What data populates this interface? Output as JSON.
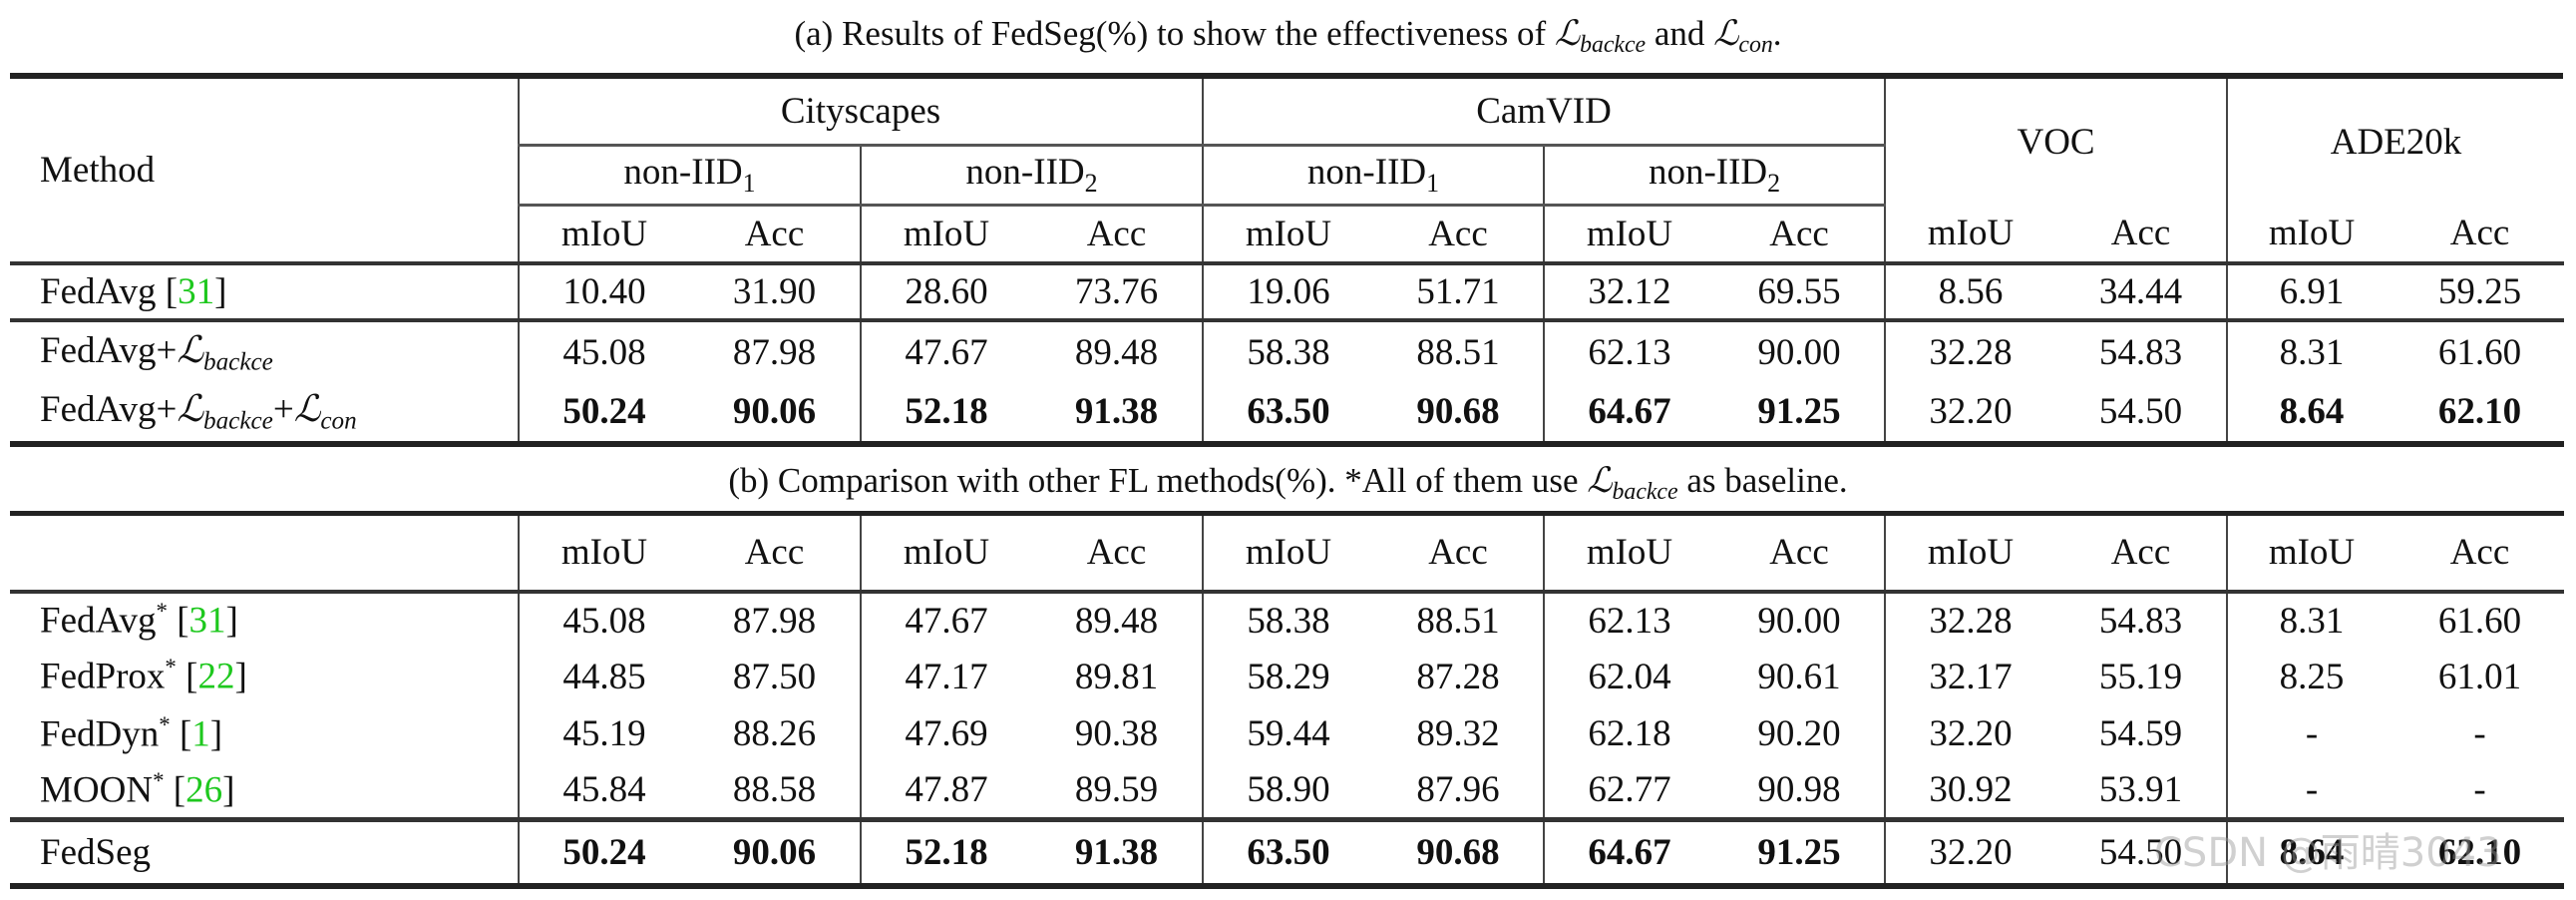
{
  "caption_a": {
    "prefix": "(a) Results of FedSeg(%) to show the effectiveness of ",
    "l1": "backce",
    "mid": " and ",
    "l2": "con",
    "suffix": "."
  },
  "caption_b": {
    "prefix": "(b) Comparison with other FL methods(%). *All of them use ",
    "l1": "backce",
    "suffix": " as baseline."
  },
  "header": {
    "method": "Method",
    "datasets": [
      "Cityscapes",
      "CamVID",
      "VOC",
      "ADE20k"
    ],
    "splits": [
      "non-IID",
      "non-IID"
    ],
    "split_subs": [
      "1",
      "2"
    ],
    "metrics": [
      "mIoU",
      "Acc",
      "mIoU",
      "Acc",
      "mIoU",
      "Acc",
      "mIoU",
      "Acc",
      "mIoU",
      "Acc",
      "mIoU",
      "Acc"
    ]
  },
  "loss_symbol": "ℒ",
  "table_a": [
    {
      "method": "FedAvg",
      "ref": "31",
      "losses": [],
      "values": [
        "10.40",
        "31.90",
        "28.60",
        "73.76",
        "19.06",
        "51.71",
        "32.12",
        "69.55",
        "8.56",
        "34.44",
        "6.91",
        "59.25"
      ],
      "bold": []
    },
    {
      "method": "FedAvg",
      "losses": [
        "backce"
      ],
      "values": [
        "45.08",
        "87.98",
        "47.67",
        "89.48",
        "58.38",
        "88.51",
        "62.13",
        "90.00",
        "32.28",
        "54.83",
        "8.31",
        "61.60"
      ],
      "bold": []
    },
    {
      "method": "FedAvg",
      "losses": [
        "backce",
        "con"
      ],
      "values": [
        "50.24",
        "90.06",
        "52.18",
        "91.38",
        "63.50",
        "90.68",
        "64.67",
        "91.25",
        "32.20",
        "54.50",
        "8.64",
        "62.10"
      ],
      "bold": [
        0,
        1,
        2,
        3,
        4,
        5,
        6,
        7,
        10,
        11
      ]
    }
  ],
  "table_b": [
    {
      "method": "FedAvg",
      "star": "*",
      "ref": "31",
      "losses": [],
      "values": [
        "45.08",
        "87.98",
        "47.67",
        "89.48",
        "58.38",
        "88.51",
        "62.13",
        "90.00",
        "32.28",
        "54.83",
        "8.31",
        "61.60"
      ],
      "bold": []
    },
    {
      "method": "FedProx",
      "star": "*",
      "ref": "22",
      "losses": [],
      "values": [
        "44.85",
        "87.50",
        "47.17",
        "89.81",
        "58.29",
        "87.28",
        "62.04",
        "90.61",
        "32.17",
        "55.19",
        "8.25",
        "61.01"
      ],
      "bold": []
    },
    {
      "method": "FedDyn",
      "star": "*",
      "ref": "1",
      "losses": [],
      "values": [
        "45.19",
        "88.26",
        "47.69",
        "90.38",
        "59.44",
        "89.32",
        "62.18",
        "90.20",
        "32.20",
        "54.59",
        "-",
        "-"
      ],
      "bold": []
    },
    {
      "method": "MOON",
      "star": "*",
      "ref": "26",
      "losses": [],
      "values": [
        "45.84",
        "88.58",
        "47.87",
        "89.59",
        "58.90",
        "87.96",
        "62.77",
        "90.98",
        "30.92",
        "53.91",
        "-",
        "-"
      ],
      "bold": []
    },
    {
      "method": "FedSeg",
      "losses": [],
      "values": [
        "50.24",
        "90.06",
        "52.18",
        "91.38",
        "63.50",
        "90.68",
        "64.67",
        "91.25",
        "32.20",
        "54.50",
        "8.64",
        "62.10"
      ],
      "bold": [
        0,
        1,
        2,
        3,
        4,
        5,
        6,
        7,
        10,
        11
      ]
    }
  ],
  "colors": {
    "reference": "#1ec81e",
    "rules": "#222222"
  },
  "watermark": "CSDN @雨晴3043"
}
